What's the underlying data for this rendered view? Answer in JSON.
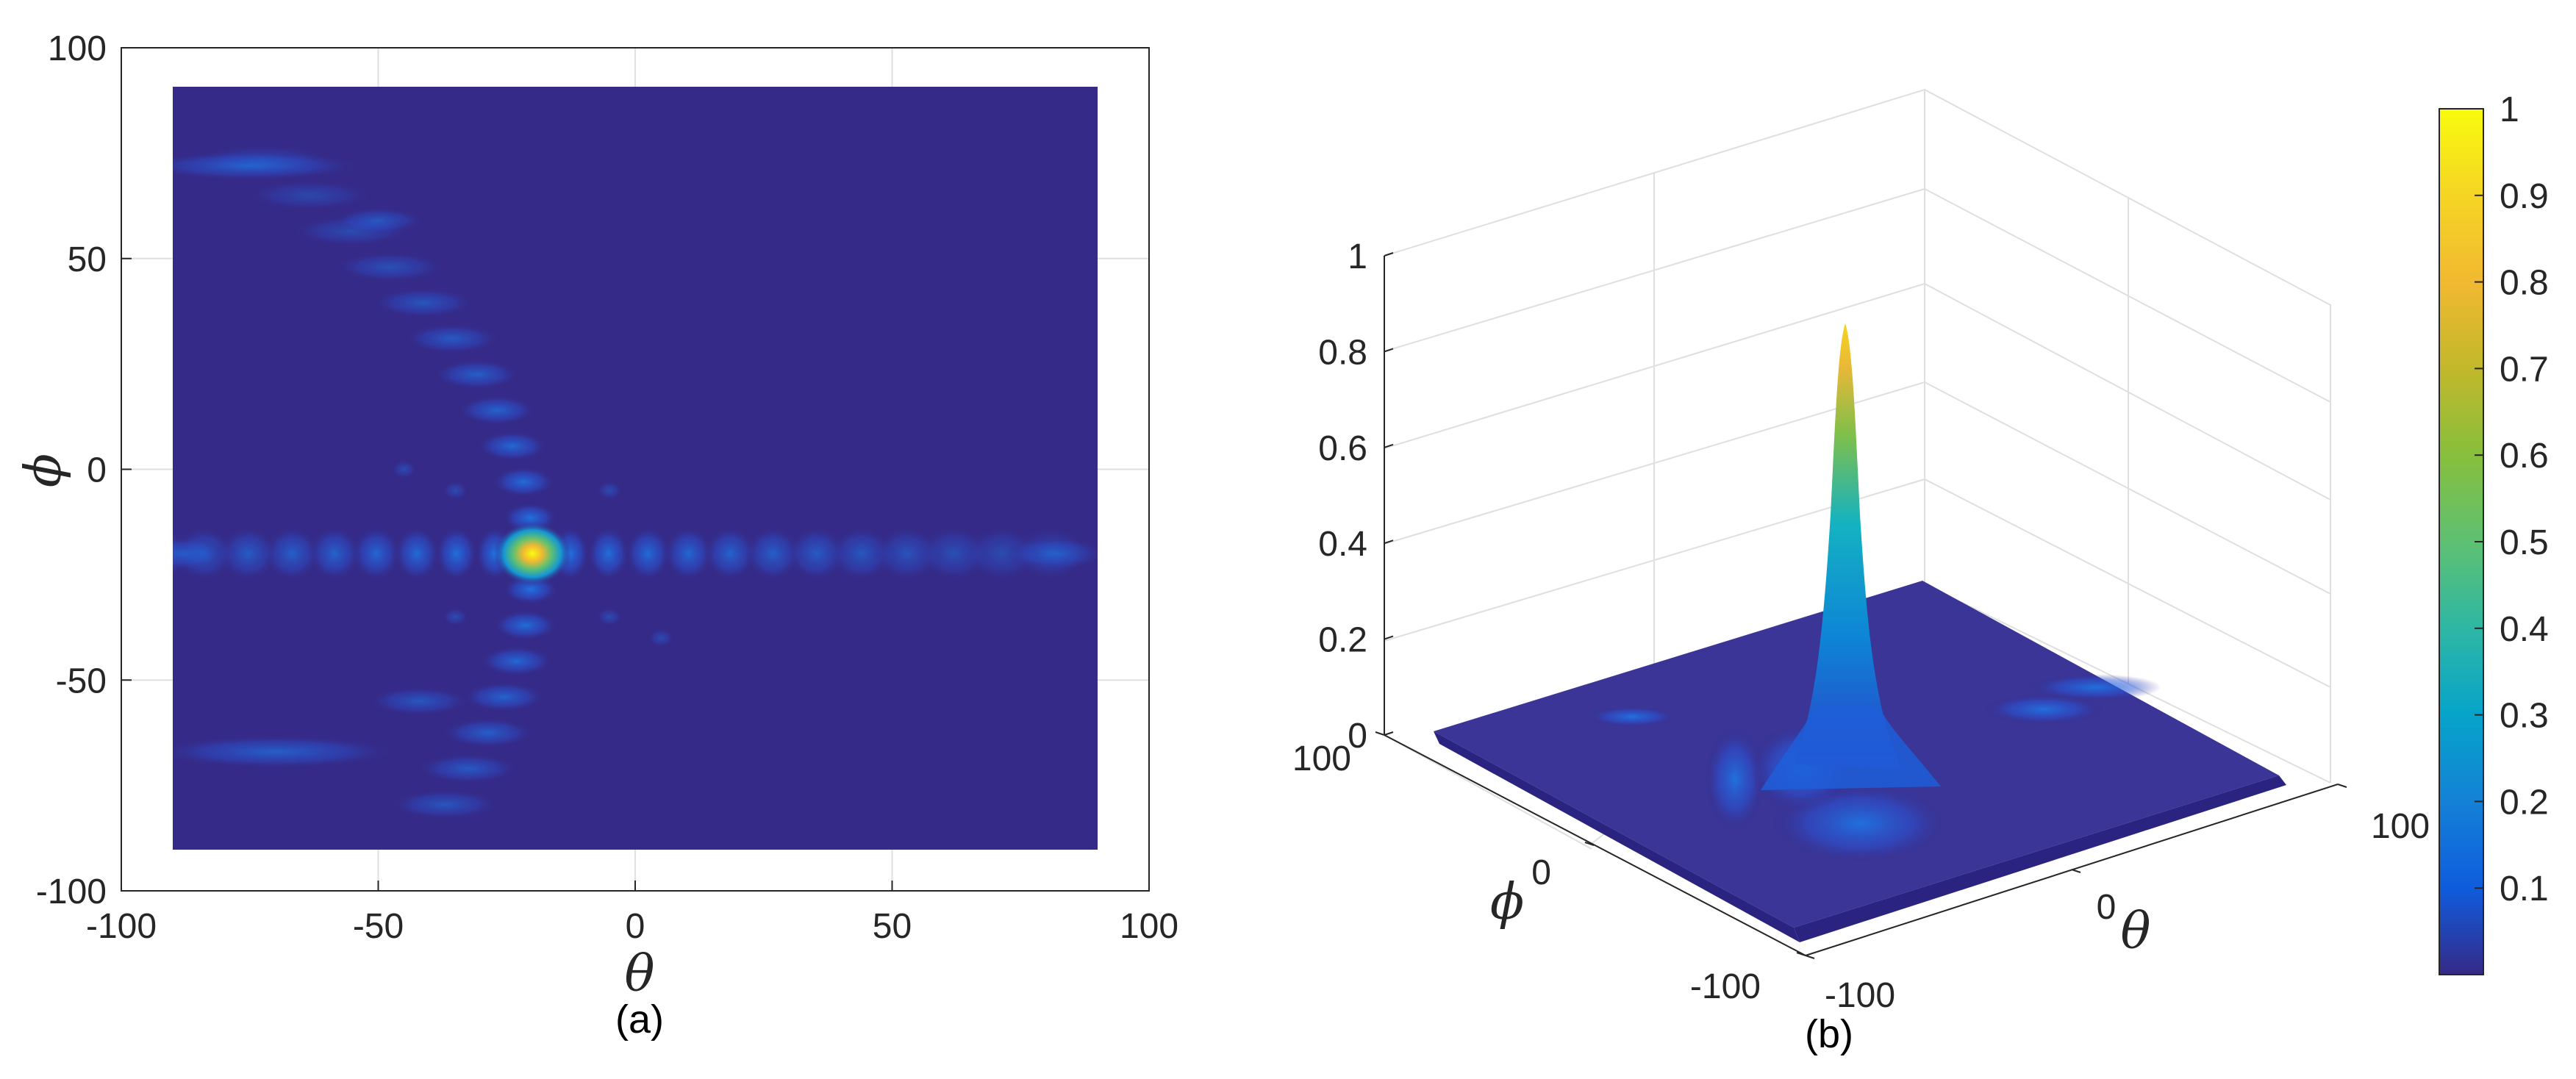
{
  "chart_data": [
    {
      "type": "heatmap",
      "panel_label": "(a)",
      "xlabel": "θ",
      "ylabel": "ϕ",
      "xlim": [
        -100,
        100
      ],
      "ylim": [
        -100,
        100
      ],
      "xticks": [
        "-100",
        "-50",
        "0",
        "50",
        "100"
      ],
      "yticks": [
        "100",
        "50",
        "0",
        "-50",
        "-100"
      ],
      "data_extent": {
        "theta": [
          -90,
          90
        ],
        "phi": [
          -90,
          90
        ]
      },
      "grid": true,
      "main_lobe": {
        "theta": -20,
        "phi": -20,
        "value": 1.0
      },
      "sidelobe_arcs": [
        "column of sidelobes along theta ≈ -20 curving to theta ≈ -90 at phi ≈ ±72",
        "row of sidelobes along phi ≈ -20 spanning theta -90 to 90"
      ],
      "colormap": "parula",
      "zlim": [
        0,
        1
      ]
    },
    {
      "type": "surface",
      "panel_label": "(b)",
      "xlabel": "θ",
      "ylabel": "ϕ",
      "zticks": [
        "1",
        "0.8",
        "0.6",
        "0.4",
        "0.2",
        "0"
      ],
      "phi_ticks": [
        "100",
        "0",
        "-100"
      ],
      "theta_ticks": [
        "-100",
        "0",
        "100"
      ],
      "zlim": [
        0,
        1
      ],
      "peak": {
        "theta": -20,
        "phi": -20,
        "value": 1.0
      },
      "colormap": "parula"
    }
  ],
  "colorbar": {
    "ticks": [
      "1",
      "0.9",
      "0.8",
      "0.7",
      "0.6",
      "0.5",
      "0.4",
      "0.3",
      "0.2",
      "0.1"
    ],
    "range": [
      0,
      1
    ]
  },
  "colors": {
    "background_low": "#352A87",
    "mid": "#1496D4",
    "high": "#F9FB0E",
    "axis": "#262626",
    "grid": "#DFDFDF"
  }
}
